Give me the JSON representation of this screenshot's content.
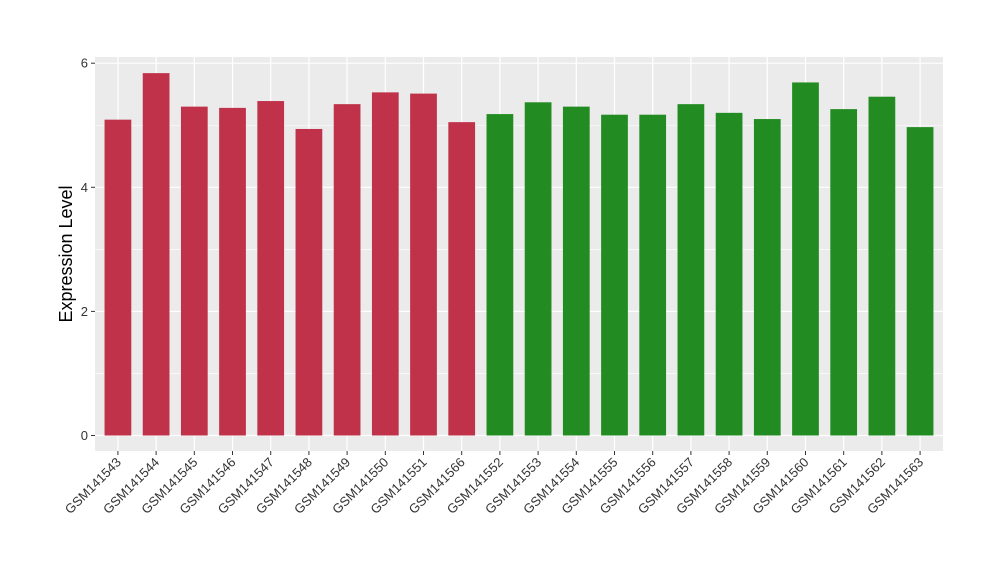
{
  "chart_data": {
    "type": "bar",
    "ylabel": "Expression Level",
    "xlabel": "",
    "ylim": [
      -0.25,
      6.1
    ],
    "yticks": [
      0,
      2,
      4,
      6
    ],
    "grid": true,
    "categories": [
      "GSM141543",
      "GSM141544",
      "GSM141545",
      "GSM141546",
      "GSM141547",
      "GSM141548",
      "GSM141549",
      "GSM141550",
      "GSM141551",
      "GSM141566",
      "GSM141552",
      "GSM141553",
      "GSM141554",
      "GSM141555",
      "GSM141556",
      "GSM141557",
      "GSM141558",
      "GSM141559",
      "GSM141560",
      "GSM141561",
      "GSM141562",
      "GSM141563"
    ],
    "values": [
      5.09,
      5.84,
      5.3,
      5.28,
      5.39,
      4.94,
      5.34,
      5.53,
      5.51,
      5.05,
      5.18,
      5.37,
      5.3,
      5.17,
      5.17,
      5.34,
      5.2,
      5.1,
      5.69,
      5.26,
      5.46,
      4.97
    ],
    "bar_colors": [
      "#c0314a",
      "#c0314a",
      "#c0314a",
      "#c0314a",
      "#c0314a",
      "#c0314a",
      "#c0314a",
      "#c0314a",
      "#c0314a",
      "#c0314a",
      "#228b22",
      "#228b22",
      "#228b22",
      "#228b22",
      "#228b22",
      "#228b22",
      "#228b22",
      "#228b22",
      "#228b22",
      "#228b22",
      "#228b22",
      "#228b22"
    ],
    "panel_background": "#ebebeb",
    "gridline_color": "#ffffff"
  }
}
